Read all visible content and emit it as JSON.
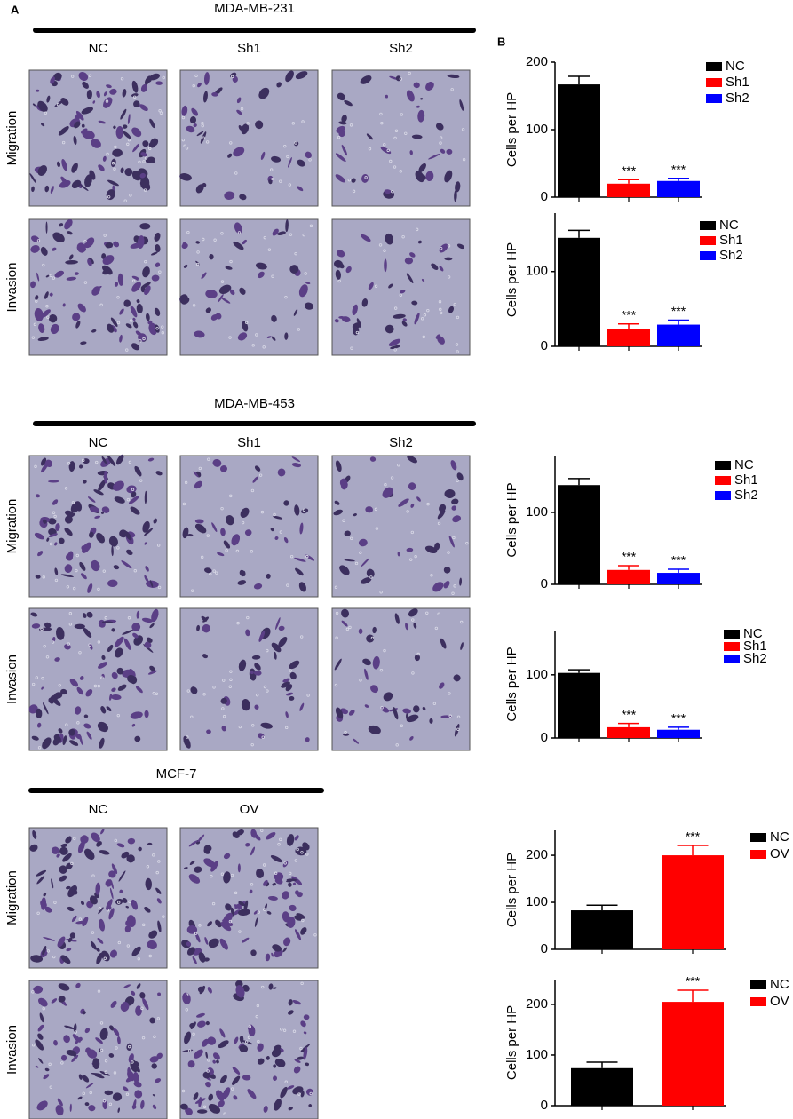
{
  "panel_labels": [
    "A",
    "B"
  ],
  "sections": [
    {
      "title": "MDA-MB-231",
      "columns": [
        "NC",
        "Sh1",
        "Sh2"
      ],
      "rows": [
        "Migration",
        "Invasion"
      ]
    },
    {
      "title": "MDA-MB-453",
      "columns": [
        "NC",
        "Sh1",
        "Sh2"
      ],
      "rows": [
        "Migration",
        "Invasion"
      ]
    },
    {
      "title": "MCF-7",
      "columns": [
        "NC",
        "OV"
      ],
      "rows": [
        "Migration",
        "Invasion"
      ]
    }
  ],
  "chart_data": [
    {
      "type": "bar",
      "ylabel": "Cells per HP",
      "categories": [
        "NC",
        "Sh1",
        "Sh2"
      ],
      "colors": [
        "#000000",
        "#ff0000",
        "#0000ff"
      ],
      "values": [
        167,
        20,
        24
      ],
      "errors": [
        12,
        6,
        4
      ],
      "annotations": [
        null,
        "***",
        "***"
      ],
      "ylim": [
        0,
        200
      ],
      "yticks": [
        0,
        100,
        200
      ]
    },
    {
      "type": "bar",
      "ylabel": "Cells per HP",
      "categories": [
        "NC",
        "Sh1",
        "Sh2"
      ],
      "colors": [
        "#000000",
        "#ff0000",
        "#0000ff"
      ],
      "values": [
        145,
        23,
        29
      ],
      "errors": [
        10,
        7,
        6
      ],
      "annotations": [
        null,
        "***",
        "***"
      ],
      "ylim": [
        0,
        178
      ],
      "yticks": [
        0,
        100
      ]
    },
    {
      "type": "bar",
      "ylabel": "Cells per HP",
      "categories": [
        "NC",
        "Sh1",
        "Sh2"
      ],
      "colors": [
        "#000000",
        "#ff0000",
        "#0000ff"
      ],
      "values": [
        138,
        20,
        16
      ],
      "errors": [
        9,
        6,
        5
      ],
      "annotations": [
        null,
        "***",
        "***"
      ],
      "ylim": [
        0,
        179
      ],
      "yticks": [
        0,
        100
      ]
    },
    {
      "type": "bar",
      "ylabel": "Cells per HP",
      "categories": [
        "NC",
        "Sh1",
        "Sh2"
      ],
      "colors": [
        "#000000",
        "#ff0000",
        "#0000ff"
      ],
      "values": [
        103,
        17,
        13
      ],
      "errors": [
        5,
        6,
        4
      ],
      "annotations": [
        null,
        "***",
        "***"
      ],
      "ylim": [
        0,
        170
      ],
      "yticks": [
        0,
        100
      ]
    },
    {
      "type": "bar",
      "ylabel": "Cells per HP",
      "categories": [
        "NC",
        "OV"
      ],
      "colors": [
        "#000000",
        "#ff0000"
      ],
      "values": [
        83,
        200
      ],
      "errors": [
        11,
        21
      ],
      "annotations": [
        null,
        "***"
      ],
      "ylim": [
        0,
        253
      ],
      "yticks": [
        0,
        100,
        200
      ]
    },
    {
      "type": "bar",
      "ylabel": "Cells per HP",
      "categories": [
        "NC",
        "OV"
      ],
      "colors": [
        "#000000",
        "#ff0000"
      ],
      "values": [
        74,
        205
      ],
      "errors": [
        12,
        23
      ],
      "annotations": [
        null,
        "***"
      ],
      "ylim": [
        0,
        249
      ],
      "yticks": [
        0,
        100,
        200
      ]
    }
  ]
}
